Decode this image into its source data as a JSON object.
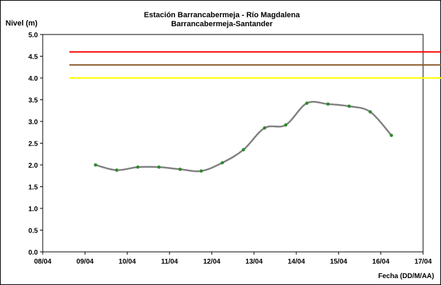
{
  "chart_data": {
    "type": "line",
    "title": "Estación Barrancabermeja - Río Magdalena",
    "subtitle": "Barrancabermeja-Santander",
    "ylabel": "Nivel (m)",
    "xlabel": "Fecha (DD/M/AA)",
    "ylim": [
      0,
      5
    ],
    "yticks": [
      "0.0",
      "0.5",
      "1.0",
      "1.5",
      "2.0",
      "2.5",
      "3.0",
      "3.5",
      "4.0",
      "4.5",
      "5.0"
    ],
    "xticks": [
      "08/04",
      "09/04",
      "10/04",
      "11/04",
      "12/04",
      "13/04",
      "14/04",
      "15/04",
      "16/04",
      "17/04"
    ],
    "grid": false,
    "thresholds": [
      {
        "value": 4.6,
        "color": "#ff0000"
      },
      {
        "value": 4.3,
        "color": "#8b5a2b"
      },
      {
        "value": 4.0,
        "color": "#ffff00"
      }
    ],
    "threshold_span": [
      0.63,
      9.75
    ],
    "series": [
      {
        "line_color": "#808080",
        "marker_color": "#2e8b2e",
        "x": [
          1.25,
          1.75,
          2.25,
          2.75,
          3.25,
          3.75,
          4.25,
          4.75,
          5.25,
          5.75,
          6.25,
          6.75,
          7.25,
          7.75,
          8.25
        ],
        "values": [
          2.0,
          1.88,
          1.95,
          1.95,
          1.9,
          1.86,
          2.05,
          2.35,
          2.85,
          2.92,
          3.42,
          3.4,
          3.35,
          3.22,
          2.68
        ]
      }
    ]
  }
}
